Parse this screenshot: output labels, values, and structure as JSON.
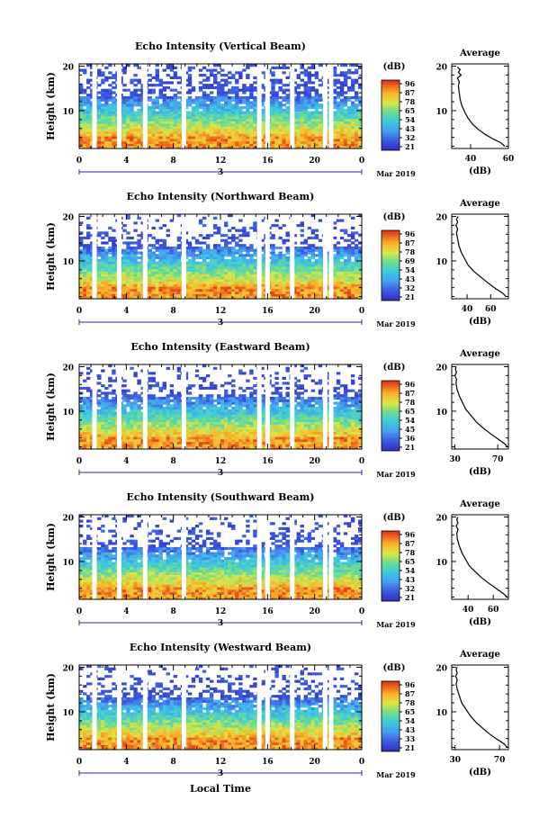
{
  "figure": {
    "date_label": "Mar 2019",
    "day_marker": "3",
    "xlabel": "Local Time",
    "colorbar_unit": "(dB)",
    "colorbar_ticks": [
      "96",
      "87",
      "78",
      "65",
      "54",
      "43",
      "32",
      "21"
    ]
  },
  "chart_data": [
    {
      "type": "heatmap",
      "title": "Echo Intensity (Vertical Beam)",
      "ylabel": "Height (km)",
      "x_ticks": [
        "0",
        "4",
        "8",
        "12",
        "16",
        "20",
        "0"
      ],
      "y_ticks": [
        "20",
        "10"
      ],
      "xlim": [
        0,
        24
      ],
      "ylim": [
        1.5,
        20.5
      ],
      "colorbar_ticks": [
        "96",
        "87",
        "78",
        "65",
        "54",
        "43",
        "32",
        "21"
      ],
      "gaps_local_time": [
        1.3,
        3.4,
        5.6,
        8.9,
        15.3,
        16.0,
        18.1,
        20.9,
        21.4
      ],
      "profile": {
        "title": "Average",
        "xlabel": "(dB)",
        "x_ticks": [
          "40",
          "60"
        ],
        "xlim": [
          30,
          60
        ],
        "y_ticks": [
          "20",
          "10"
        ],
        "ylim": [
          1.5,
          20.5
        ],
        "points": [
          [
            58,
            2
          ],
          [
            56,
            2.8
          ],
          [
            52,
            3.6
          ],
          [
            48,
            4.6
          ],
          [
            44,
            5.8
          ],
          [
            41,
            7
          ],
          [
            38.5,
            8.4
          ],
          [
            37,
            9.6
          ],
          [
            35.5,
            11
          ],
          [
            34.5,
            12.5
          ],
          [
            34,
            14
          ],
          [
            33.5,
            15.5
          ],
          [
            34,
            16.5
          ],
          [
            33,
            17.3
          ],
          [
            35,
            18
          ],
          [
            33.5,
            18.6
          ],
          [
            34.5,
            19.2
          ],
          [
            33,
            19.8
          ]
        ]
      }
    },
    {
      "type": "heatmap",
      "title": "Echo Intensity (Northward Beam)",
      "ylabel": "Height (km)",
      "x_ticks": [
        "0",
        "4",
        "8",
        "12",
        "16",
        "20",
        "0"
      ],
      "y_ticks": [
        "20",
        "10"
      ],
      "xlim": [
        0,
        24
      ],
      "ylim": [
        1.5,
        20.5
      ],
      "colorbar_ticks": [
        "96",
        "87",
        "78",
        "69",
        "54",
        "43",
        "32",
        "21"
      ],
      "gaps_local_time": [
        1.3,
        3.4,
        5.6,
        8.9,
        15.3,
        16.0,
        18.1,
        20.9,
        21.4
      ],
      "profile": {
        "title": "Average",
        "xlabel": "(dB)",
        "x_ticks": [
          "40",
          "60"
        ],
        "xlim": [
          27,
          75
        ],
        "y_ticks": [
          "20",
          "10"
        ],
        "ylim": [
          1.5,
          20.5
        ],
        "points": [
          [
            73,
            2
          ],
          [
            70,
            2.8
          ],
          [
            64,
            3.8
          ],
          [
            58,
            5
          ],
          [
            52,
            6.3
          ],
          [
            46,
            7.6
          ],
          [
            41,
            9
          ],
          [
            38,
            10.5
          ],
          [
            35,
            12
          ],
          [
            33,
            13.5
          ],
          [
            32,
            15
          ],
          [
            31,
            16.3
          ],
          [
            32,
            17.2
          ],
          [
            30.5,
            18
          ],
          [
            32,
            18.7
          ],
          [
            31,
            19.4
          ],
          [
            32.5,
            20
          ]
        ]
      }
    },
    {
      "type": "heatmap",
      "title": "Echo Intensity (Eastward Beam)",
      "ylabel": "Height (km)",
      "x_ticks": [
        "0",
        "4",
        "8",
        "12",
        "16",
        "20",
        "0"
      ],
      "y_ticks": [
        "20",
        "10"
      ],
      "xlim": [
        0,
        24
      ],
      "ylim": [
        1.5,
        20.5
      ],
      "colorbar_ticks": [
        "96",
        "87",
        "78",
        "65",
        "54",
        "45",
        "36",
        "21"
      ],
      "gaps_local_time": [
        1.3,
        3.4,
        5.6,
        8.9,
        15.3,
        16.0,
        18.1,
        20.9,
        21.4
      ],
      "profile": {
        "title": "Average",
        "xlabel": "(dB)",
        "x_ticks": [
          "30",
          "70"
        ],
        "xlim": [
          27,
          80
        ],
        "y_ticks": [
          "20",
          "10"
        ],
        "ylim": [
          1.5,
          20.5
        ],
        "points": [
          [
            79,
            2
          ],
          [
            76,
            2.8
          ],
          [
            70,
            3.8
          ],
          [
            63,
            5
          ],
          [
            56,
            6.3
          ],
          [
            50,
            7.6
          ],
          [
            45,
            9
          ],
          [
            40,
            10.5
          ],
          [
            37,
            12
          ],
          [
            34,
            13.5
          ],
          [
            32,
            15
          ],
          [
            31,
            16.3
          ],
          [
            31.5,
            17.2
          ],
          [
            30,
            18
          ],
          [
            31.5,
            18.7
          ],
          [
            30.5,
            19.4
          ],
          [
            31,
            20
          ]
        ]
      }
    },
    {
      "type": "heatmap",
      "title": "Echo Intensity (Southward Beam)",
      "ylabel": "Height (km)",
      "x_ticks": [
        "0",
        "4",
        "8",
        "12",
        "16",
        "20",
        "0"
      ],
      "y_ticks": [
        "20",
        "10"
      ],
      "xlim": [
        0,
        24
      ],
      "ylim": [
        1.5,
        20.5
      ],
      "colorbar_ticks": [
        "96",
        "87",
        "78",
        "65",
        "54",
        "43",
        "32",
        "21"
      ],
      "gaps_local_time": [
        1.3,
        3.4,
        5.6,
        8.9,
        15.3,
        16.0,
        18.1,
        20.9,
        21.4
      ],
      "profile": {
        "title": "Average",
        "xlabel": "(dB)",
        "x_ticks": [
          "40",
          "60"
        ],
        "xlim": [
          27,
          72
        ],
        "y_ticks": [
          "20",
          "10"
        ],
        "ylim": [
          1.5,
          20.5
        ],
        "points": [
          [
            71,
            2
          ],
          [
            68,
            2.8
          ],
          [
            63,
            3.8
          ],
          [
            57,
            5
          ],
          [
            51,
            6.3
          ],
          [
            46,
            7.6
          ],
          [
            41,
            9
          ],
          [
            38,
            10.5
          ],
          [
            35,
            12
          ],
          [
            33,
            13.5
          ],
          [
            31.5,
            15
          ],
          [
            31,
            16.3
          ],
          [
            32,
            17.2
          ],
          [
            30.5,
            18
          ],
          [
            32,
            18.7
          ],
          [
            31,
            19.4
          ],
          [
            32,
            20
          ]
        ]
      }
    },
    {
      "type": "heatmap",
      "title": "Echo Intensity (Westward Beam)",
      "ylabel": "Height (km)",
      "x_ticks": [
        "0",
        "4",
        "8",
        "12",
        "16",
        "20",
        "0"
      ],
      "y_ticks": [
        "20",
        "10"
      ],
      "xlim": [
        0,
        24
      ],
      "ylim": [
        1.5,
        20.5
      ],
      "colorbar_ticks": [
        "96",
        "87",
        "78",
        "65",
        "54",
        "43",
        "33",
        "21"
      ],
      "gaps_local_time": [
        1.3,
        3.4,
        5.6,
        8.9,
        15.3,
        16.0,
        18.1,
        20.9,
        21.4
      ],
      "profile": {
        "title": "Average",
        "xlabel": "(dB)",
        "x_ticks": [
          "30",
          "70"
        ],
        "xlim": [
          27,
          78
        ],
        "y_ticks": [
          "20",
          "10"
        ],
        "ylim": [
          1.5,
          20.5
        ],
        "points": [
          [
            77,
            2
          ],
          [
            74,
            2.8
          ],
          [
            68,
            3.8
          ],
          [
            61,
            5
          ],
          [
            55,
            6.3
          ],
          [
            49,
            7.6
          ],
          [
            44,
            9
          ],
          [
            40,
            10.5
          ],
          [
            36,
            12
          ],
          [
            34,
            13.5
          ],
          [
            32,
            15
          ],
          [
            31,
            16.3
          ],
          [
            32,
            17.2
          ],
          [
            30.5,
            18
          ],
          [
            32,
            18.7
          ],
          [
            31,
            19.4
          ],
          [
            32,
            20
          ]
        ]
      }
    }
  ]
}
